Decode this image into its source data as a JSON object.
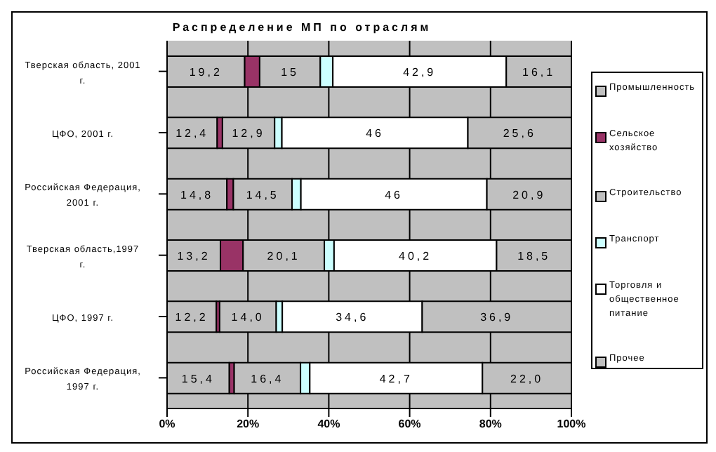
{
  "chart_data": {
    "type": "bar",
    "orientation": "horizontal",
    "stacked": true,
    "title": "Распределение МП по отраслям",
    "categories": [
      "Тверская область, 2001 г.",
      "ЦФО, 2001 г.",
      "Российская Федерация, 2001 г.",
      "Тверская область,1997 г.",
      "ЦФО, 1997 г.",
      "Российская Федерация, 1997 г."
    ],
    "series": [
      {
        "name": "Промышленность",
        "color": "#c0c0c0",
        "values": [
          19.2,
          12.4,
          14.8,
          13.2,
          12.2,
          15.4
        ],
        "value_labels": [
          "19,2",
          "12,4",
          "14,8",
          "13,2",
          "12,2",
          "15,4"
        ]
      },
      {
        "name": "Сельское хозяйство",
        "color": "#993366",
        "values": [
          3.7,
          1.3,
          1.6,
          5.6,
          0.8,
          1.2
        ]
      },
      {
        "name": "Строительство",
        "color": "#c0c0c0",
        "values": [
          15,
          12.9,
          14.5,
          20.1,
          14.0,
          16.4
        ],
        "value_labels": [
          "15",
          "12,9",
          "14,5",
          "20,1",
          "14,0",
          "16,4"
        ]
      },
      {
        "name": "Транспорт",
        "color": "#ccffff",
        "values": [
          3.1,
          1.8,
          2.2,
          2.4,
          1.5,
          2.3
        ]
      },
      {
        "name": "Торговля и общественное питание",
        "color": "#ffffff",
        "values": [
          42.9,
          46,
          46,
          40.2,
          34.6,
          42.7
        ],
        "value_labels": [
          "42,9",
          "46",
          "46",
          "40,2",
          "34,6",
          "42,7"
        ]
      },
      {
        "name": "Прочее",
        "color": "#c0c0c0",
        "values": [
          16.1,
          25.6,
          20.9,
          18.5,
          36.9,
          22.0
        ],
        "value_labels": [
          "16,1",
          "25,6",
          "20,9",
          "18,5",
          "36,9",
          "22,0"
        ]
      }
    ],
    "xlim": [
      0,
      100
    ],
    "xticks": [
      {
        "value": 0,
        "label": "0%"
      },
      {
        "value": 20,
        "label": "20%"
      },
      {
        "value": 40,
        "label": "40%"
      },
      {
        "value": 60,
        "label": "60%"
      },
      {
        "value": 80,
        "label": "80%"
      },
      {
        "value": 100,
        "label": "100%"
      }
    ],
    "grid": "x",
    "legend": "right"
  }
}
